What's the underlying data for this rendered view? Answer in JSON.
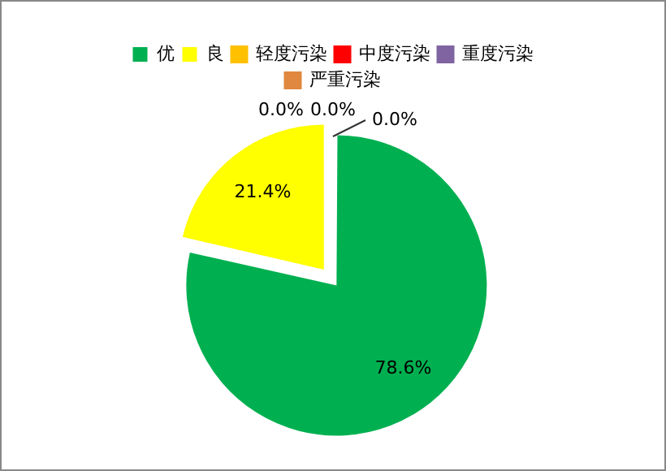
{
  "chart_data": {
    "type": "pie",
    "categories": [
      "优",
      "良",
      "轻度污染",
      "中度污染",
      "重度污染",
      "严重污染"
    ],
    "values": [
      78.6,
      21.4,
      0.0,
      0.0,
      0.0,
      0.0
    ],
    "colors": [
      "#00b050",
      "#ffff00",
      "#ffc000",
      "#ff0000",
      "#8064a2",
      "#e0883f"
    ],
    "value_labels": [
      "78.6%",
      "21.4%",
      "0.0%",
      null,
      "0.0%",
      "0.0%"
    ],
    "legend": "top"
  }
}
